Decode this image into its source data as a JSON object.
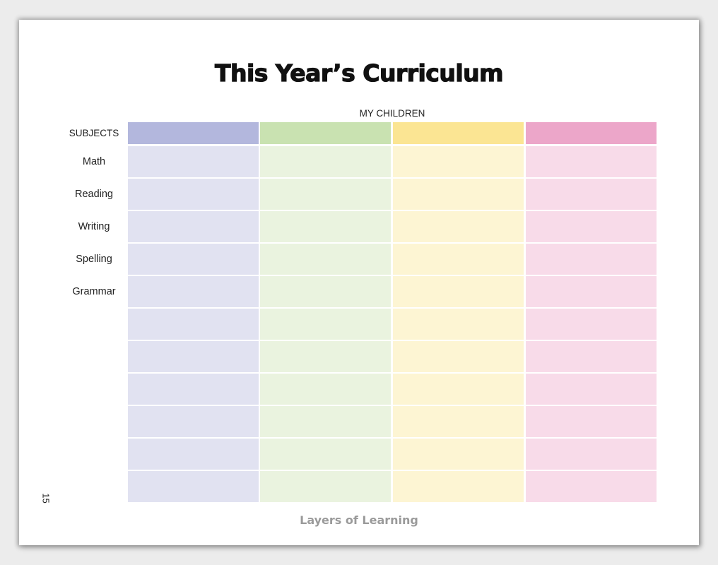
{
  "page": {
    "title": "This Year’s Curriculum",
    "page_number": "15",
    "footer": "Layers of Learning"
  },
  "table": {
    "column_group_label": "MY CHILDREN",
    "row_header_label": "SUBJECTS",
    "row_labels": [
      "Math",
      "Reading",
      "Writing",
      "Spelling",
      "Grammar",
      "",
      "",
      "",
      "",
      "",
      ""
    ],
    "columns": [
      {
        "header_color": "#b3b7dd",
        "cell_color": "#e1e2f1"
      },
      {
        "header_color": "#c9e2b1",
        "cell_color": "#eaf3df"
      },
      {
        "header_color": "#fbe593",
        "cell_color": "#fdf5d3"
      },
      {
        "header_color": "#eca6c9",
        "cell_color": "#f8dbe9"
      }
    ]
  }
}
